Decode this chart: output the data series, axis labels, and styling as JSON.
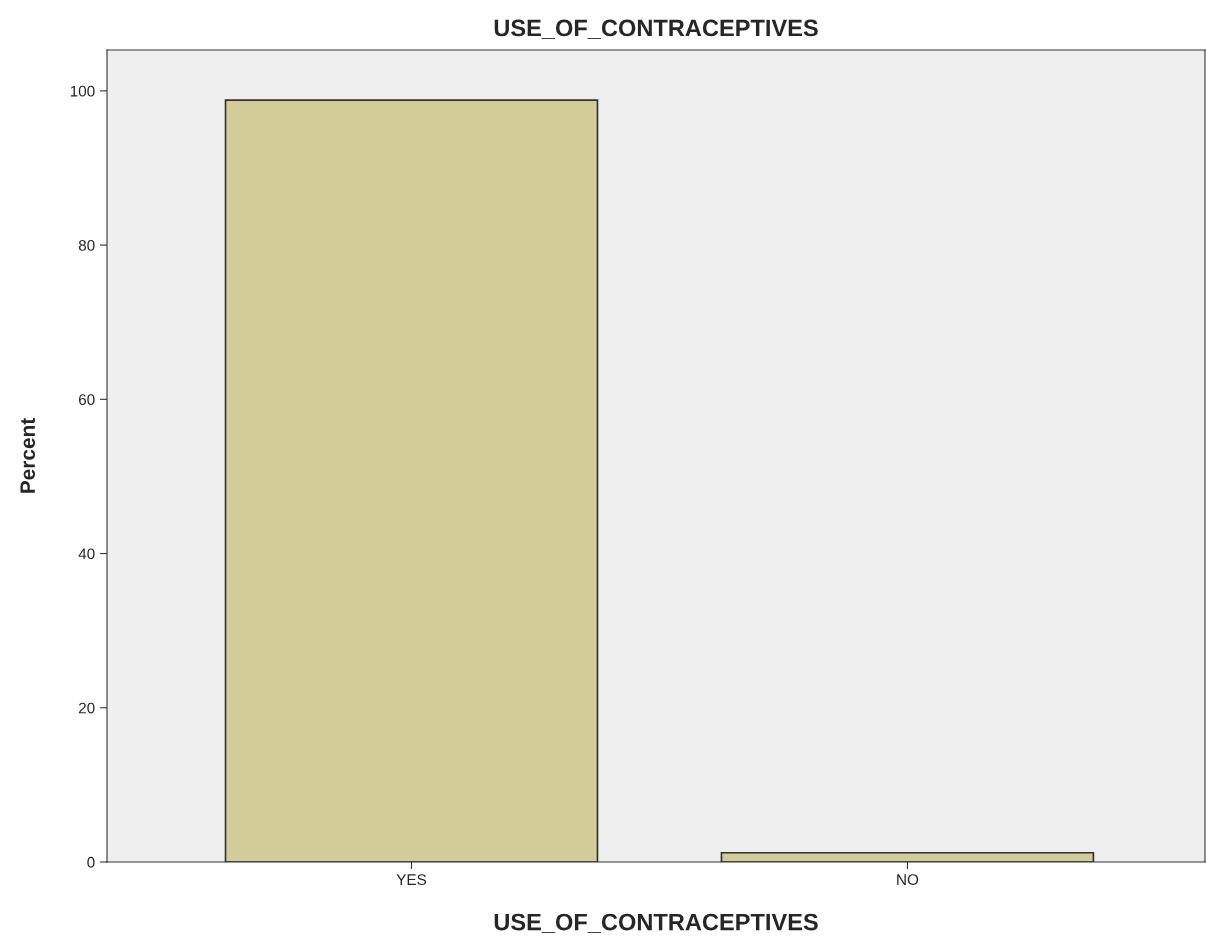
{
  "chart_data": {
    "type": "bar",
    "title": "USE_OF_CONTRACEPTIVES",
    "xlabel": "USE_OF_CONTRACEPTIVES",
    "ylabel": "Percent",
    "categories": [
      "YES",
      "NO"
    ],
    "values": [
      98.8,
      1.2
    ],
    "color": "#d2cc98",
    "ylim": [
      0,
      105.3
    ],
    "yticks": [
      0,
      20,
      40,
      60,
      80,
      100
    ],
    "grid": false
  }
}
